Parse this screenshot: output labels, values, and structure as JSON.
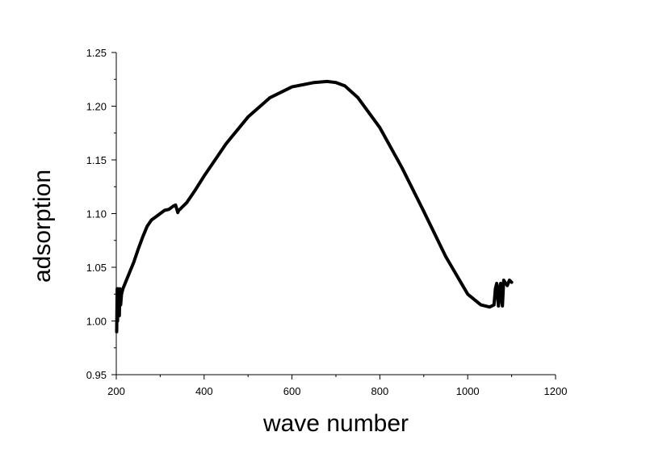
{
  "chart_data": {
    "type": "line",
    "title": "",
    "xlabel": "wave number",
    "ylabel": "adsorption",
    "xlim": [
      200,
      1200
    ],
    "ylim": [
      0.95,
      1.25
    ],
    "x_ticks": [
      200,
      400,
      600,
      800,
      1000,
      1200
    ],
    "y_ticks": [
      0.95,
      1.0,
      1.05,
      1.1,
      1.15,
      1.2,
      1.25
    ],
    "x_tick_labels": [
      "200",
      "400",
      "600",
      "800",
      "1000",
      "1200"
    ],
    "y_tick_labels": [
      "0.95",
      "1.00",
      "1.05",
      "1.10",
      "1.15",
      "1.20",
      "1.25"
    ],
    "grid": false,
    "legend": "none",
    "line_color": "#000000",
    "series": [
      {
        "x": [
          201,
          202,
          203,
          204,
          205,
          206,
          207,
          208,
          210,
          212,
          215,
          220,
          230,
          240,
          250,
          260,
          270,
          280,
          290,
          300,
          310,
          320,
          330,
          335,
          340,
          342,
          345,
          350,
          360,
          380,
          400,
          450,
          500,
          550,
          600,
          650,
          680,
          700,
          720,
          750,
          800,
          850,
          900,
          950,
          1000,
          1030,
          1050,
          1060,
          1063,
          1066,
          1068,
          1070,
          1072,
          1075,
          1077,
          1079,
          1082,
          1085,
          1090,
          1095,
          1100
        ],
        "y": [
          0.99,
          1.03,
          1.0,
          1.03,
          1.01,
          1.025,
          1.005,
          1.03,
          1.015,
          1.025,
          1.03,
          1.035,
          1.045,
          1.055,
          1.067,
          1.078,
          1.088,
          1.094,
          1.097,
          1.1,
          1.103,
          1.104,
          1.107,
          1.108,
          1.101,
          1.103,
          1.104,
          1.106,
          1.11,
          1.122,
          1.135,
          1.165,
          1.19,
          1.208,
          1.218,
          1.222,
          1.223,
          1.222,
          1.219,
          1.208,
          1.18,
          1.143,
          1.102,
          1.06,
          1.025,
          1.015,
          1.013,
          1.015,
          1.03,
          1.035,
          1.023,
          1.014,
          1.03,
          1.035,
          1.02,
          1.014,
          1.038,
          1.036,
          1.033,
          1.038,
          1.036
        ]
      }
    ]
  }
}
